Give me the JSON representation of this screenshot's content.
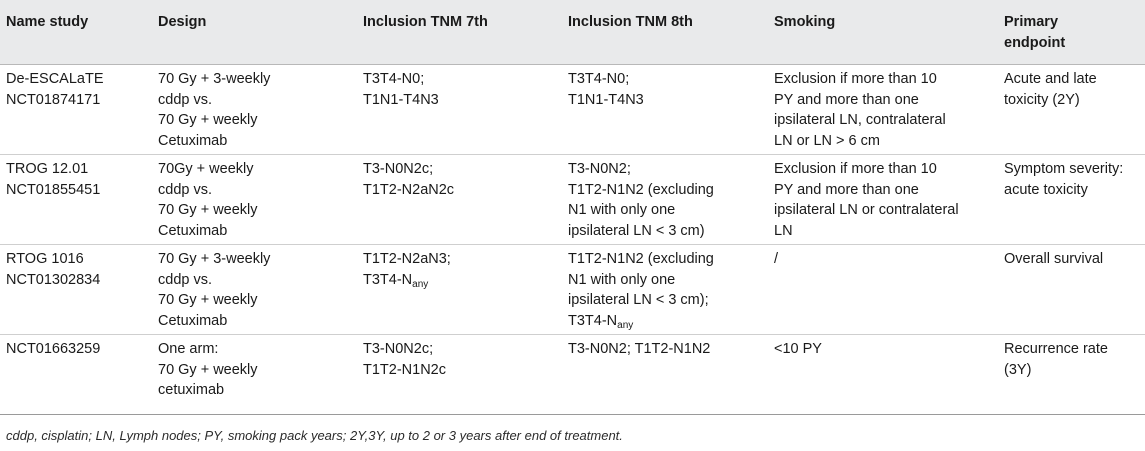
{
  "table": {
    "headers": [
      [
        "Name study"
      ],
      [
        "Design"
      ],
      [
        "Inclusion TNM 7th"
      ],
      [
        "Inclusion TNM 8th"
      ],
      [
        "Smoking"
      ],
      [
        "Primary",
        "endpoint"
      ]
    ],
    "rows": [
      {
        "name_study": [
          "De-ESCALaTE",
          "NCT01874171"
        ],
        "design": [
          "70 Gy + 3-weekly",
          "cddp vs.",
          "70 Gy + weekly",
          "Cetuximab"
        ],
        "tnm7": [
          "T3T4-N0;",
          "T1N1-T4N3"
        ],
        "tnm8": [
          "T3T4-N0;",
          "T1N1-T4N3"
        ],
        "smoking": [
          "Exclusion if more than 10",
          "PY and more than one",
          "ipsilateral LN, contralateral",
          "LN or LN > 6 cm"
        ],
        "endpoint": [
          "Acute and late",
          "toxicity (2Y)"
        ]
      },
      {
        "name_study": [
          "TROG 12.01",
          "NCT01855451"
        ],
        "design": [
          "70Gy + weekly",
          "cddp vs.",
          "70 Gy + weekly",
          "Cetuximab"
        ],
        "tnm7": [
          "T3-N0N2c;",
          "T1T2-N2aN2c"
        ],
        "tnm8": [
          "T3-N0N2;",
          "T1T2-N1N2 (excluding",
          "N1 with only one",
          "ipsilateral LN < 3 cm)"
        ],
        "smoking": [
          "Exclusion if more than 10",
          "PY and more than one",
          "ipsilateral LN or contralateral",
          "LN"
        ],
        "endpoint": [
          "Symptom severity:",
          "acute toxicity"
        ]
      },
      {
        "name_study": [
          "RTOG 1016",
          "NCT01302834"
        ],
        "design": [
          "70 Gy + 3-weekly",
          "cddp vs.",
          "70 Gy + weekly",
          "Cetuximab"
        ],
        "tnm7_line1": "T1T2-N2aN3;",
        "tnm7_line2_main": "T3T4-N",
        "tnm7_line2_sub": "any",
        "tnm8_lines": [
          "T1T2-N1N2 (excluding",
          "N1 with only one",
          "ipsilateral LN < 3 cm);"
        ],
        "tnm8_last_main": "T3T4-N",
        "tnm8_last_sub": "any",
        "smoking": [
          "/"
        ],
        "endpoint": [
          "Overall survival"
        ]
      },
      {
        "name_study": [
          "NCT01663259"
        ],
        "design": [
          "One arm:",
          "70 Gy + weekly",
          "cetuximab"
        ],
        "tnm7": [
          "T3-N0N2c;",
          "T1T2-N1N2c"
        ],
        "tnm8": [
          "T3-N0N2; T1T2-N1N2"
        ],
        "smoking": [
          "<10 PY"
        ],
        "endpoint": [
          "Recurrence rate",
          "(3Y)"
        ]
      }
    ]
  },
  "footnote": "cddp, cisplatin; LN, Lymph nodes; PY, smoking pack years; 2Y,3Y, up to 2 or 3 years after end of treatment."
}
